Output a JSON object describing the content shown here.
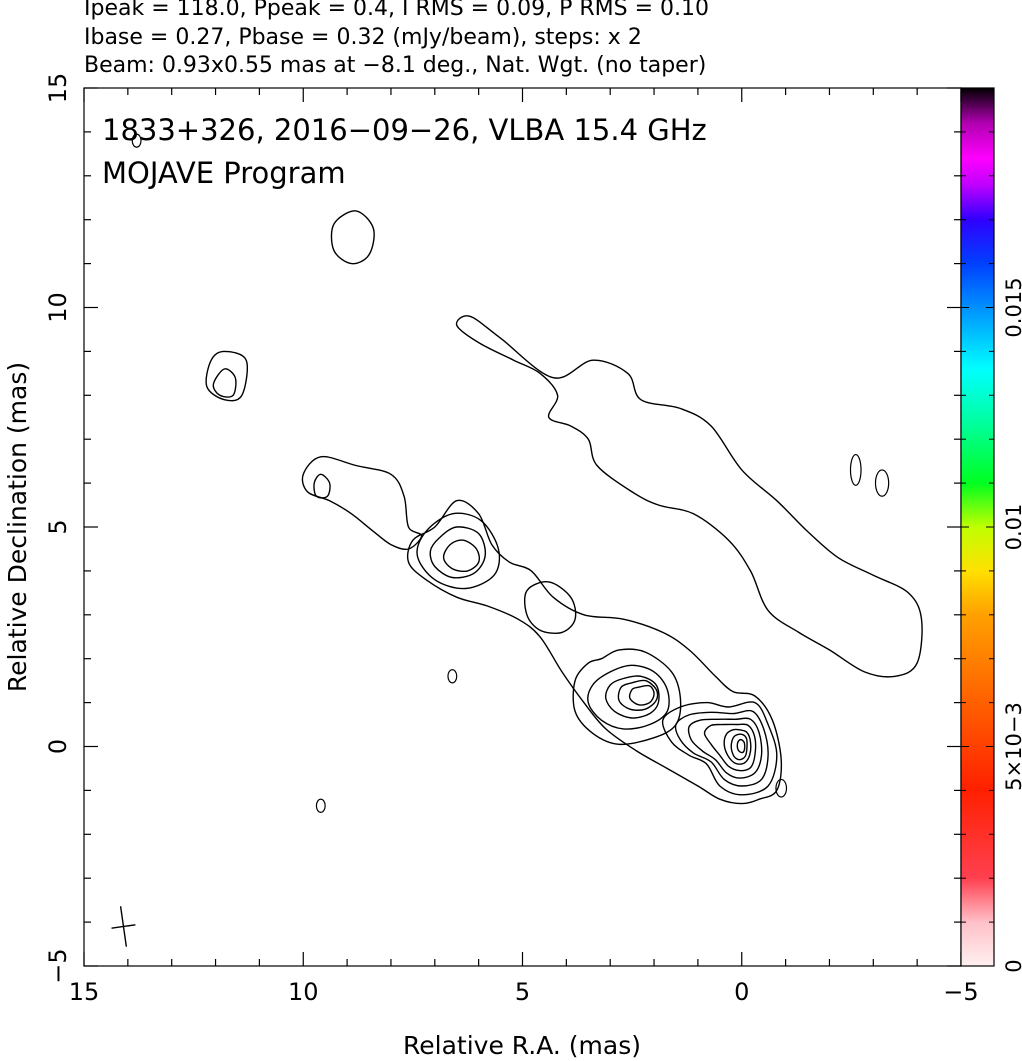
{
  "header": {
    "line1": "Ipeak = 118.0, Ppeak = 0.4, I RMS = 0.09, P RMS = 0.10",
    "line2": "Ibase = 0.27, Pbase = 0.32 (mJy/beam), steps: x 2",
    "line3": "Beam: 0.93x0.55 mas at −8.1 deg., Nat. Wgt. (no taper)"
  },
  "chart_data": {
    "type": "contour",
    "title_line1": "1833+326, 2016−09−26, VLBA 15.4 GHz",
    "title_line2": "MOJAVE Program",
    "xlabel": "Relative R.A. (mas)",
    "ylabel": "Relative Declination (mas)",
    "xlim": [
      15,
      -5
    ],
    "ylim": [
      -5,
      15
    ],
    "x_ticks": [
      15,
      10,
      5,
      0,
      -5
    ],
    "x_tick_labels": [
      "15",
      "10",
      "5",
      "0",
      "−5"
    ],
    "y_ticks": [
      -5,
      0,
      5,
      10,
      15
    ],
    "y_tick_labels": [
      "−5",
      "0",
      "5",
      "10",
      "15"
    ],
    "colorbar": {
      "range": [
        0,
        0.02
      ],
      "ticks": [
        0,
        0.005,
        0.01,
        0.015
      ],
      "tick_labels": [
        "0",
        "5×10−3",
        "0.01",
        "0.015"
      ]
    },
    "contour_levels_mJy_per_beam": [
      0.27,
      0.54,
      1.08,
      2.16,
      4.32,
      8.64,
      17.28,
      34.56,
      69.12
    ],
    "core": {
      "ra": 0,
      "dec": 0
    },
    "beam": {
      "major_mas": 0.93,
      "minor_mas": 0.55,
      "pa_deg": -8.1,
      "center": [
        14.1,
        -4.1
      ]
    },
    "contours": [
      {
        "name": "core-3",
        "level": 3,
        "points": [
          [
            0.3,
            0.9
          ],
          [
            -0.3,
            1.0
          ],
          [
            -0.6,
            0.5
          ],
          [
            -0.8,
            -0.2
          ],
          [
            -0.6,
            -0.9
          ],
          [
            0.0,
            -1.1
          ],
          [
            0.5,
            -0.9
          ],
          [
            0.8,
            -0.4
          ],
          [
            1.2,
            -0.2
          ],
          [
            1.6,
            0.1
          ],
          [
            1.8,
            0.6
          ],
          [
            1.4,
            0.9
          ],
          [
            0.8,
            1.0
          ]
        ]
      },
      {
        "name": "core-4",
        "level": 4,
        "points": [
          [
            0.2,
            0.75
          ],
          [
            -0.25,
            0.8
          ],
          [
            -0.5,
            0.4
          ],
          [
            -0.6,
            -0.2
          ],
          [
            -0.45,
            -0.75
          ],
          [
            0.0,
            -0.9
          ],
          [
            0.4,
            -0.75
          ],
          [
            0.7,
            -0.35
          ],
          [
            1.1,
            -0.15
          ],
          [
            1.4,
            0.15
          ],
          [
            1.5,
            0.5
          ],
          [
            1.2,
            0.72
          ],
          [
            0.7,
            0.78
          ]
        ]
      },
      {
        "name": "core-5",
        "level": 5,
        "points": [
          [
            0.15,
            0.62
          ],
          [
            -0.2,
            0.62
          ],
          [
            -0.4,
            0.3
          ],
          [
            -0.45,
            -0.2
          ],
          [
            -0.3,
            -0.6
          ],
          [
            0.05,
            -0.72
          ],
          [
            0.35,
            -0.6
          ],
          [
            0.6,
            -0.3
          ],
          [
            0.9,
            -0.1
          ],
          [
            1.15,
            0.15
          ],
          [
            1.2,
            0.45
          ],
          [
            0.95,
            0.6
          ],
          [
            0.55,
            0.62
          ]
        ]
      },
      {
        "name": "core-6",
        "level": 6,
        "points": [
          [
            0.1,
            0.5
          ],
          [
            -0.15,
            0.48
          ],
          [
            -0.3,
            0.2
          ],
          [
            -0.3,
            -0.2
          ],
          [
            -0.2,
            -0.48
          ],
          [
            0.05,
            -0.55
          ],
          [
            0.3,
            -0.45
          ],
          [
            0.5,
            -0.2
          ],
          [
            0.7,
            0.05
          ],
          [
            0.85,
            0.3
          ],
          [
            0.7,
            0.48
          ],
          [
            0.4,
            0.5
          ]
        ]
      },
      {
        "name": "core-7",
        "level": 7,
        "points": [
          [
            0.05,
            0.38
          ],
          [
            -0.12,
            0.32
          ],
          [
            -0.2,
            0.1
          ],
          [
            -0.18,
            -0.2
          ],
          [
            -0.05,
            -0.38
          ],
          [
            0.15,
            -0.38
          ],
          [
            0.32,
            -0.2
          ],
          [
            0.4,
            0.05
          ],
          [
            0.35,
            0.28
          ],
          [
            0.2,
            0.38
          ]
        ]
      },
      {
        "name": "core-8",
        "level": 8,
        "points": [
          [
            0.02,
            0.28
          ],
          [
            -0.1,
            0.2
          ],
          [
            -0.12,
            0.0
          ],
          [
            -0.08,
            -0.22
          ],
          [
            0.05,
            -0.3
          ],
          [
            0.18,
            -0.22
          ],
          [
            0.24,
            0.0
          ],
          [
            0.18,
            0.22
          ]
        ]
      },
      {
        "name": "core-9",
        "level": 9,
        "points": [
          [
            0.0,
            0.15
          ],
          [
            -0.06,
            0.08
          ],
          [
            -0.06,
            -0.08
          ],
          [
            0.0,
            -0.14
          ],
          [
            0.08,
            -0.08
          ],
          [
            0.1,
            0.05
          ],
          [
            0.06,
            0.14
          ]
        ]
      },
      {
        "name": "knot-2",
        "level": 2,
        "points": [
          [
            3.2,
            2.0
          ],
          [
            2.8,
            2.2
          ],
          [
            2.2,
            2.15
          ],
          [
            1.6,
            1.7
          ],
          [
            1.4,
            1.1
          ],
          [
            1.5,
            0.5
          ],
          [
            2.0,
            0.2
          ],
          [
            2.8,
            0.05
          ],
          [
            3.4,
            0.3
          ],
          [
            3.8,
            0.8
          ],
          [
            3.8,
            1.5
          ],
          [
            3.5,
            1.9
          ]
        ]
      },
      {
        "name": "knot-3",
        "level": 3,
        "points": [
          [
            3.0,
            1.7
          ],
          [
            2.5,
            1.85
          ],
          [
            2.0,
            1.7
          ],
          [
            1.7,
            1.3
          ],
          [
            1.7,
            0.8
          ],
          [
            2.1,
            0.5
          ],
          [
            2.7,
            0.4
          ],
          [
            3.2,
            0.6
          ],
          [
            3.5,
            1.0
          ],
          [
            3.4,
            1.4
          ]
        ]
      },
      {
        "name": "knot-4",
        "level": 4,
        "points": [
          [
            2.7,
            1.55
          ],
          [
            2.3,
            1.6
          ],
          [
            1.95,
            1.4
          ],
          [
            1.9,
            1.0
          ],
          [
            2.1,
            0.75
          ],
          [
            2.5,
            0.65
          ],
          [
            2.9,
            0.8
          ],
          [
            3.1,
            1.1
          ],
          [
            3.0,
            1.4
          ]
        ]
      },
      {
        "name": "knot-5",
        "level": 5,
        "points": [
          [
            2.5,
            1.45
          ],
          [
            2.2,
            1.5
          ],
          [
            1.95,
            1.3
          ],
          [
            1.95,
            1.05
          ],
          [
            2.2,
            0.85
          ],
          [
            2.55,
            0.85
          ],
          [
            2.8,
            1.05
          ],
          [
            2.75,
            1.35
          ]
        ]
      },
      {
        "name": "knot-6",
        "level": 6,
        "points": [
          [
            2.35,
            1.35
          ],
          [
            2.1,
            1.38
          ],
          [
            2.0,
            1.2
          ],
          [
            2.1,
            1.0
          ],
          [
            2.35,
            0.95
          ],
          [
            2.55,
            1.1
          ],
          [
            2.5,
            1.3
          ]
        ]
      },
      {
        "name": "jet-base",
        "level": 1,
        "points": [
          [
            7.5,
            4.7
          ],
          [
            7.0,
            5.0
          ],
          [
            6.5,
            5.6
          ],
          [
            6.0,
            5.3
          ],
          [
            5.7,
            4.6
          ],
          [
            5.3,
            4.2
          ],
          [
            4.8,
            4.0
          ],
          [
            4.3,
            3.4
          ],
          [
            3.6,
            3.0
          ],
          [
            2.7,
            2.9
          ],
          [
            1.8,
            2.6
          ],
          [
            1.2,
            2.2
          ],
          [
            0.6,
            1.6
          ],
          [
            0.2,
            1.25
          ],
          [
            -0.3,
            1.15
          ],
          [
            -0.7,
            0.6
          ],
          [
            -0.9,
            -0.3
          ],
          [
            -0.8,
            -1.0
          ],
          [
            -0.4,
            -1.2
          ],
          [
            0.0,
            -1.3
          ],
          [
            0.5,
            -1.2
          ],
          [
            1.0,
            -0.9
          ],
          [
            1.7,
            -0.5
          ],
          [
            2.4,
            -0.1
          ],
          [
            3.1,
            0.4
          ],
          [
            3.6,
            1.0
          ],
          [
            4.1,
            1.7
          ],
          [
            4.6,
            2.5
          ],
          [
            5.1,
            2.9
          ],
          [
            5.8,
            3.2
          ],
          [
            6.5,
            3.4
          ],
          [
            7.2,
            3.8
          ],
          [
            7.6,
            4.2
          ]
        ]
      },
      {
        "name": "knot-outer-2",
        "level": 2,
        "points": [
          [
            7.2,
            4.9
          ],
          [
            6.6,
            5.3
          ],
          [
            5.95,
            5.15
          ],
          [
            5.55,
            4.5
          ],
          [
            5.65,
            3.9
          ],
          [
            6.3,
            3.6
          ],
          [
            7.0,
            3.8
          ],
          [
            7.4,
            4.35
          ]
        ]
      },
      {
        "name": "knot-outer-3",
        "level": 3,
        "points": [
          [
            6.9,
            4.75
          ],
          [
            6.5,
            5.0
          ],
          [
            6.0,
            4.85
          ],
          [
            5.85,
            4.35
          ],
          [
            6.1,
            3.95
          ],
          [
            6.6,
            3.85
          ],
          [
            7.0,
            4.1
          ],
          [
            7.1,
            4.45
          ]
        ]
      },
      {
        "name": "knot-outer-4",
        "level": 4,
        "points": [
          [
            6.65,
            4.6
          ],
          [
            6.35,
            4.7
          ],
          [
            6.05,
            4.5
          ],
          [
            6.0,
            4.2
          ],
          [
            6.25,
            4.0
          ],
          [
            6.6,
            4.05
          ],
          [
            6.8,
            4.3
          ]
        ]
      },
      {
        "name": "jet-hole",
        "level": 1,
        "points": [
          [
            4.9,
            3.55
          ],
          [
            4.4,
            3.75
          ],
          [
            3.9,
            3.4
          ],
          [
            3.8,
            2.9
          ],
          [
            4.1,
            2.6
          ],
          [
            4.6,
            2.65
          ],
          [
            4.9,
            3.0
          ]
        ]
      },
      {
        "name": "north-blob",
        "level": 1,
        "points": [
          [
            9.6,
            6.6
          ],
          [
            8.8,
            6.4
          ],
          [
            8.0,
            6.2
          ],
          [
            7.7,
            5.7
          ],
          [
            7.6,
            5.0
          ],
          [
            7.3,
            4.8
          ],
          [
            7.6,
            4.5
          ],
          [
            8.0,
            4.6
          ],
          [
            8.4,
            4.9
          ],
          [
            8.9,
            5.3
          ],
          [
            9.4,
            5.6
          ],
          [
            9.9,
            5.8
          ],
          [
            10.0,
            6.2
          ]
        ]
      },
      {
        "name": "north-blob-inner",
        "level": 2,
        "points": [
          [
            9.6,
            6.2
          ],
          [
            9.4,
            6.0
          ],
          [
            9.45,
            5.7
          ],
          [
            9.7,
            5.7
          ],
          [
            9.75,
            6.0
          ]
        ]
      },
      {
        "name": "far-blob",
        "level": 1,
        "points": [
          [
            8.8,
            12.2
          ],
          [
            8.4,
            11.8
          ],
          [
            8.5,
            11.2
          ],
          [
            8.9,
            11.0
          ],
          [
            9.3,
            11.3
          ],
          [
            9.3,
            11.9
          ]
        ]
      },
      {
        "name": "far-left-blob",
        "level": 1,
        "points": [
          [
            11.8,
            9.0
          ],
          [
            11.3,
            8.8
          ],
          [
            11.4,
            8.0
          ],
          [
            11.8,
            7.9
          ],
          [
            12.2,
            8.2
          ],
          [
            12.1,
            8.8
          ]
        ]
      },
      {
        "name": "far-left-inner",
        "level": 2,
        "points": [
          [
            11.8,
            8.6
          ],
          [
            11.55,
            8.4
          ],
          [
            11.6,
            8.0
          ],
          [
            11.9,
            8.0
          ],
          [
            12.05,
            8.25
          ]
        ]
      },
      {
        "name": "halo",
        "level": 1,
        "points": [
          [
            6.5,
            9.6
          ],
          [
            6.0,
            9.2
          ],
          [
            5.2,
            8.8
          ],
          [
            4.6,
            8.5
          ],
          [
            4.2,
            8.0
          ],
          [
            4.4,
            7.5
          ],
          [
            3.9,
            7.3
          ],
          [
            3.5,
            7.0
          ],
          [
            3.3,
            6.4
          ],
          [
            2.5,
            5.8
          ],
          [
            1.9,
            5.5
          ],
          [
            1.1,
            5.3
          ],
          [
            0.3,
            4.7
          ],
          [
            -0.2,
            4.0
          ],
          [
            -0.6,
            3.1
          ],
          [
            -1.3,
            2.6
          ],
          [
            -2.0,
            2.2
          ],
          [
            -2.8,
            1.7
          ],
          [
            -3.5,
            1.6
          ],
          [
            -4.0,
            1.9
          ],
          [
            -4.1,
            2.9
          ],
          [
            -3.8,
            3.5
          ],
          [
            -3.0,
            3.9
          ],
          [
            -2.2,
            4.3
          ],
          [
            -1.5,
            4.9
          ],
          [
            -0.8,
            5.6
          ],
          [
            0.0,
            6.3
          ],
          [
            0.7,
            7.3
          ],
          [
            1.4,
            7.7
          ],
          [
            2.3,
            7.9
          ],
          [
            2.6,
            8.5
          ],
          [
            3.4,
            8.8
          ],
          [
            4.3,
            8.4
          ],
          [
            5.5,
            9.3
          ],
          [
            6.2,
            9.8
          ]
        ]
      }
    ]
  }
}
